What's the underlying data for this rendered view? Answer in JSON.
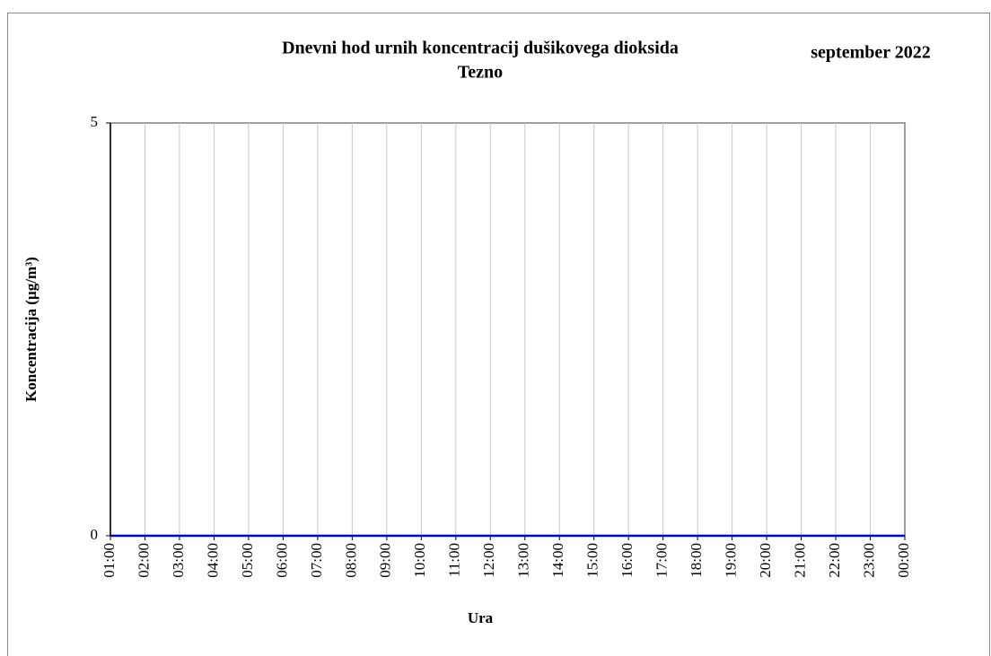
{
  "chart_data": {
    "type": "line",
    "title": "Dnevni hod urnih  koncentracij dušikovega dioksida",
    "subtitle": "Tezno",
    "annotation": "september 2022",
    "x_label": "Ura",
    "y_label": "Koncentracija  (µg/m³)",
    "categories": [
      "01:00",
      "02:00",
      "03:00",
      "04:00",
      "05:00",
      "06:00",
      "07:00",
      "08:00",
      "09:00",
      "10:00",
      "11:00",
      "12:00",
      "13:00",
      "14:00",
      "15:00",
      "16:00",
      "17:00",
      "18:00",
      "19:00",
      "20:00",
      "21:00",
      "22:00",
      "23:00",
      "00:00"
    ],
    "values": [
      0,
      0,
      0,
      0,
      0,
      0,
      0,
      0,
      0,
      0,
      0,
      0,
      0,
      0,
      0,
      0,
      0,
      0,
      0,
      0,
      0,
      0,
      0,
      0
    ],
    "color": "#0000cc",
    "ylim": [
      0,
      5
    ],
    "yticks": [
      0,
      5
    ],
    "grid": true
  }
}
